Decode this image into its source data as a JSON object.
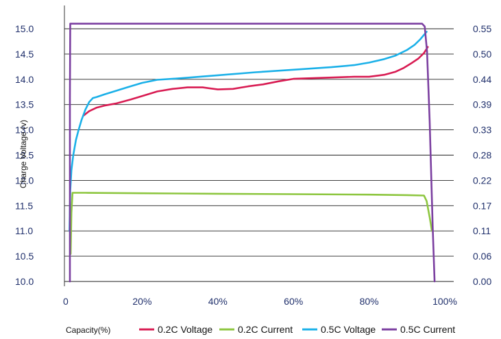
{
  "chart_data": {
    "type": "line",
    "title": "",
    "xlabel": "Capacity(%)",
    "ylabel": "Charge Voltage (v)",
    "xlim": [
      0,
      100
    ],
    "ylim": [
      10.0,
      15.5
    ],
    "y2lim": [
      0.0,
      0.6
    ],
    "x_ticks": [
      "0",
      "20%",
      "40%",
      "60%",
      "80%",
      "100%"
    ],
    "y_ticks": [
      "10.0",
      "10.5",
      "11.0",
      "11.5",
      "12.0",
      "12.5",
      "13.0",
      "13.5",
      "14.0",
      "14.5",
      "15.0"
    ],
    "y2_ticks": [
      "0.00",
      "0.06",
      "0.11",
      "0.17",
      "0.22",
      "0.28",
      "0.33",
      "0.39",
      "0.44",
      "0.50",
      "0.55"
    ],
    "grid": true,
    "legend_position": "bottom",
    "series": [
      {
        "name": "0.2C Voltage",
        "color": "#d81b52",
        "axis": "left",
        "x": [
          4.5,
          6,
          8,
          10,
          13,
          17,
          20,
          24,
          28,
          32,
          36,
          40,
          44,
          48,
          52,
          56,
          60,
          64,
          68,
          72,
          76,
          80,
          84,
          87,
          89,
          91,
          93,
          94.5,
          95.5
        ],
        "y": [
          13.28,
          13.37,
          13.44,
          13.48,
          13.52,
          13.6,
          13.67,
          13.76,
          13.81,
          13.84,
          13.84,
          13.8,
          13.81,
          13.86,
          13.9,
          13.96,
          14.01,
          14.02,
          14.03,
          14.04,
          14.05,
          14.05,
          14.09,
          14.15,
          14.22,
          14.31,
          14.41,
          14.52,
          14.64
        ]
      },
      {
        "name": "0.2C Current",
        "color": "#8dc63f",
        "axis": "right",
        "x": [
          1.1,
          1.3,
          1.6,
          5,
          20,
          40,
          60,
          80,
          90,
          94.5,
          95.2,
          96,
          96.6
        ],
        "y": [
          0.06,
          0.15,
          0.193,
          0.193,
          0.192,
          0.191,
          0.19,
          0.189,
          0.188,
          0.187,
          0.175,
          0.14,
          0.11
        ]
      },
      {
        "name": "0.5C Voltage",
        "color": "#1ab0e8",
        "axis": "left",
        "x": [
          0.8,
          1.0,
          1.3,
          1.8,
          2.5,
          3.2,
          4.0,
          5.0,
          6.0,
          7.0,
          8.0,
          10,
          13,
          16,
          20,
          24,
          30,
          40,
          50,
          60,
          70,
          76,
          80,
          84,
          87,
          90,
          92,
          93.5,
          94.5,
          95.2
        ],
        "y": [
          11.0,
          11.8,
          12.2,
          12.5,
          12.8,
          13.0,
          13.2,
          13.4,
          13.55,
          13.63,
          13.65,
          13.7,
          13.77,
          13.84,
          13.93,
          13.99,
          14.02,
          14.08,
          14.14,
          14.19,
          14.24,
          14.28,
          14.33,
          14.4,
          14.47,
          14.58,
          14.68,
          14.79,
          14.88,
          14.94
        ]
      },
      {
        "name": "0.5C Current",
        "color": "#7b3fa0",
        "axis": "right",
        "x": [
          0.9,
          0.9,
          1.0,
          10,
          40,
          80,
          94.0,
          94.7,
          95.3,
          96.0,
          96.8,
          97.3
        ],
        "y": [
          0.0,
          0.4,
          0.561,
          0.561,
          0.561,
          0.561,
          0.561,
          0.555,
          0.5,
          0.35,
          0.12,
          0.0
        ]
      }
    ]
  }
}
